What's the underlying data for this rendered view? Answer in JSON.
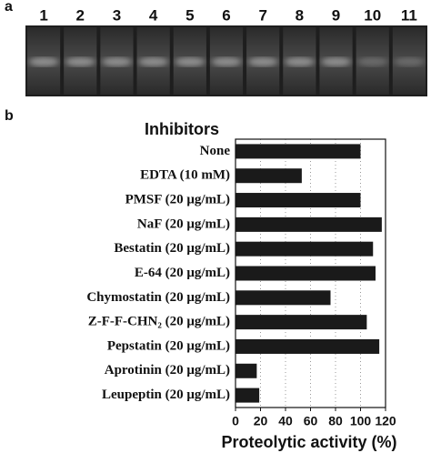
{
  "panel_a": {
    "label": "a",
    "lanes": [
      "1",
      "2",
      "3",
      "4",
      "5",
      "6",
      "7",
      "8",
      "9",
      "10",
      "11"
    ]
  },
  "chart_data": {
    "type": "hbar",
    "panel_label": "b",
    "title": "Inhibitors",
    "categories": [
      "None",
      "EDTA (10 mM)",
      "PMSF (20 μg/mL)",
      "NaF (20 μg/mL)",
      "Bestatin (20 μg/mL)",
      "E-64 (20 μg/mL)",
      "Chymostatin (20 μg/mL)",
      "Z-F-F-CHN₂ (20 μg/mL)",
      "Pepstatin (20 μg/mL)",
      "Aprotinin (20 μg/mL)",
      "Leupeptin (20 μg/mL)"
    ],
    "values": [
      100,
      53,
      100,
      117,
      110,
      112,
      76,
      105,
      115,
      17,
      19
    ],
    "color": "#1a1a1a",
    "xlabel": "Proteolytic activity (%)",
    "xlim": [
      0,
      120
    ],
    "xticks": [
      0,
      20,
      40,
      60,
      80,
      100,
      120
    ],
    "grid": true
  }
}
